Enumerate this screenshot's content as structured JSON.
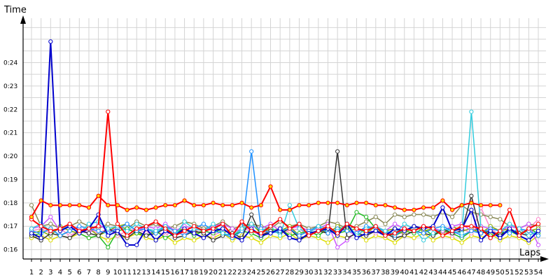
{
  "chart_data": {
    "type": "line",
    "ylabel": "Time",
    "xlabel": "Laps",
    "x": [
      1,
      2,
      3,
      4,
      5,
      6,
      7,
      8,
      9,
      10,
      11,
      12,
      13,
      14,
      15,
      16,
      17,
      18,
      19,
      20,
      21,
      22,
      23,
      24,
      25,
      26,
      27,
      28,
      29,
      30,
      31,
      32,
      33,
      34,
      35,
      36,
      37,
      38,
      39,
      40,
      41,
      42,
      43,
      44,
      45,
      46,
      47,
      48,
      49,
      50,
      51,
      52,
      53,
      54
    ],
    "xlim": [
      1,
      54
    ],
    "y_ticks": [
      "0:16",
      "0:17",
      "0:18",
      "0:19",
      "0:20",
      "0:21",
      "0:22",
      "0:23",
      "0:24"
    ],
    "y_tick_values": [
      16,
      17,
      18,
      19,
      20,
      21,
      22,
      23,
      24
    ],
    "ylim": [
      15.6,
      25.9
    ],
    "grid": true,
    "series": [
      {
        "color": "#ff0000",
        "marker_fill": "#ffd700",
        "width": 2,
        "values": [
          17.4,
          18.1,
          17.9,
          17.9,
          17.9,
          17.9,
          17.8,
          18.3,
          17.9,
          17.9,
          17.7,
          17.8,
          17.7,
          17.8,
          17.9,
          17.9,
          18.1,
          17.9,
          17.9,
          18.0,
          17.9,
          17.9,
          18.0,
          17.8,
          17.9,
          18.7,
          17.7,
          17.7,
          17.9,
          17.9,
          18.0,
          18.0,
          18.0,
          17.9,
          18.0,
          18.0,
          17.9,
          17.9,
          17.8,
          17.7,
          17.7,
          17.8,
          17.8,
          18.1,
          17.7,
          17.9,
          18.0,
          17.9,
          17.9,
          17.9,
          null,
          null,
          null,
          null
        ]
      },
      {
        "color": "#ff0000",
        "marker_fill": "#ffffff",
        "width": 2,
        "values": [
          17.3,
          17.0,
          16.8,
          16.9,
          17.1,
          16.8,
          16.9,
          17.0,
          21.9,
          17.1,
          16.6,
          16.9,
          17.0,
          17.2,
          16.9,
          16.6,
          16.8,
          17.0,
          16.8,
          16.9,
          17.1,
          16.6,
          17.2,
          16.8,
          16.7,
          17.0,
          17.3,
          16.9,
          17.1,
          16.6,
          16.8,
          17.0,
          16.7,
          17.1,
          16.9,
          16.8,
          17.0,
          16.6,
          16.7,
          16.9,
          16.8,
          17.0,
          16.9,
          16.6,
          16.8,
          17.0,
          17.0,
          16.9,
          16.5,
          16.8,
          17.7,
          16.6,
          16.9,
          17.1
        ]
      },
      {
        "color": "#0000cc",
        "marker_fill": "#ffffff",
        "width": 2,
        "values": [
          16.7,
          16.5,
          24.9,
          16.8,
          17.0,
          16.7,
          16.9,
          17.5,
          16.6,
          16.8,
          16.2,
          16.2,
          16.9,
          16.4,
          16.8,
          16.6,
          16.9,
          16.7,
          16.5,
          16.8,
          16.9,
          16.6,
          16.4,
          16.9,
          16.6,
          16.7,
          16.9,
          16.5,
          16.4,
          16.7,
          16.8,
          16.9,
          16.6,
          17.1,
          16.5,
          16.7,
          16.8,
          16.6,
          16.9,
          16.8,
          17.0,
          16.9,
          17.0,
          17.8,
          16.8,
          16.9,
          17.7,
          16.4,
          16.8,
          16.5,
          16.9,
          16.6,
          16.4,
          16.8
        ]
      },
      {
        "color": "#33ccdd",
        "marker_fill": "#ffffff",
        "width": 1.5,
        "values": [
          16.9,
          17.1,
          16.8,
          16.9,
          17.0,
          16.7,
          17.1,
          17.2,
          16.9,
          17.0,
          16.8,
          17.1,
          16.9,
          16.8,
          17.0,
          16.6,
          17.2,
          16.9,
          16.8,
          17.1,
          16.7,
          16.6,
          16.9,
          17.1,
          16.8,
          17.0,
          16.6,
          17.9,
          16.9,
          16.7,
          17.0,
          16.9,
          16.8,
          17.1,
          16.6,
          16.9,
          17.0,
          16.8,
          16.7,
          17.1,
          16.9,
          16.4,
          16.7,
          16.9,
          16.8,
          16.7,
          21.9,
          16.9,
          16.5,
          16.8,
          17.1,
          16.9,
          16.6,
          16.8
        ]
      },
      {
        "color": "#1e90ff",
        "marker_fill": "#ffffff",
        "width": 1.5,
        "values": [
          16.8,
          16.7,
          16.9,
          16.6,
          16.8,
          17.0,
          16.9,
          16.8,
          16.7,
          16.9,
          17.1,
          16.8,
          16.9,
          16.7,
          17.0,
          16.8,
          16.6,
          16.9,
          17.1,
          16.8,
          16.7,
          16.5,
          16.8,
          20.2,
          16.9,
          16.7,
          16.8,
          16.9,
          16.6,
          16.8,
          17.0,
          16.7,
          16.9,
          16.8,
          16.7,
          17.0,
          16.9,
          16.8,
          16.6,
          16.9,
          16.8,
          16.7,
          16.9,
          17.0,
          16.8,
          16.6,
          16.8,
          16.7,
          16.9,
          16.8,
          16.7,
          16.9,
          16.8,
          16.6
        ]
      },
      {
        "color": "#333333",
        "marker_fill": "#ffffff",
        "width": 1.5,
        "values": [
          16.6,
          16.4,
          16.7,
          16.6,
          16.5,
          16.8,
          16.7,
          16.6,
          16.9,
          16.7,
          16.5,
          16.8,
          16.6,
          16.7,
          16.9,
          16.5,
          16.6,
          16.8,
          16.7,
          16.4,
          16.6,
          16.7,
          16.5,
          17.5,
          16.6,
          16.8,
          16.7,
          16.9,
          16.5,
          16.6,
          16.8,
          16.7,
          20.2,
          16.5,
          16.7,
          16.6,
          16.8,
          16.7,
          16.5,
          16.6,
          16.8,
          16.7,
          16.6,
          16.9,
          16.7,
          16.8,
          18.3,
          16.7,
          16.8,
          16.6,
          16.9,
          16.7,
          16.6,
          16.8
        ]
      },
      {
        "color": "#cc55ff",
        "marker_fill": "#ffffff",
        "width": 1.5,
        "values": [
          16.9,
          17.0,
          17.4,
          16.8,
          17.0,
          16.9,
          16.7,
          17.1,
          16.8,
          16.9,
          17.1,
          16.8,
          17.0,
          16.9,
          17.1,
          16.8,
          17.0,
          16.9,
          16.8,
          17.0,
          17.1,
          16.9,
          16.8,
          17.0,
          16.9,
          17.1,
          16.8,
          16.9,
          17.0,
          16.8,
          16.9,
          17.1,
          16.1,
          16.4,
          16.8,
          16.9,
          17.0,
          16.8,
          17.1,
          16.9,
          16.8,
          17.0,
          16.9,
          16.8,
          17.0,
          17.1,
          16.8,
          17.0,
          16.9,
          16.8,
          17.0,
          16.9,
          17.1,
          16.2
        ]
      },
      {
        "color": "#88aa00",
        "marker_fill": "#ffffff",
        "width": 1.5,
        "values": [
          16.7,
          16.8,
          16.6,
          17.0,
          16.8,
          16.7,
          16.9,
          16.6,
          16.8,
          17.0,
          17.1,
          16.8,
          16.9,
          16.7,
          17.0,
          16.8,
          16.9,
          16.7,
          16.8,
          17.0,
          16.7,
          16.9,
          16.8,
          17.1,
          16.7,
          16.9,
          16.8,
          17.0,
          16.6,
          16.8,
          16.9,
          16.7,
          17.0,
          16.8,
          16.9,
          16.7,
          17.0,
          16.8,
          16.9,
          16.7,
          17.0,
          16.8,
          16.9,
          16.7,
          17.0,
          16.8,
          16.9,
          16.7,
          17.0,
          16.8,
          16.9,
          16.7,
          16.8,
          16.9
        ]
      },
      {
        "color": "#22bb22",
        "marker_fill": "#ffffff",
        "width": 1.5,
        "values": [
          16.6,
          16.7,
          16.9,
          16.6,
          16.8,
          16.7,
          16.5,
          16.6,
          16.1,
          16.8,
          16.9,
          16.7,
          16.6,
          16.8,
          16.5,
          16.7,
          16.9,
          16.6,
          16.8,
          16.7,
          16.9,
          16.6,
          16.8,
          16.7,
          16.5,
          16.8,
          16.9,
          16.6,
          16.7,
          16.8,
          16.6,
          16.9,
          16.7,
          16.8,
          17.6,
          17.4,
          16.9,
          16.7,
          16.6,
          16.8,
          16.7,
          16.9,
          16.6,
          16.8,
          16.7,
          16.5,
          16.8,
          16.9,
          16.6,
          16.7,
          16.8,
          16.6,
          16.9,
          16.7
        ]
      },
      {
        "color": "#888855",
        "marker_fill": "#ffffff",
        "width": 1.5,
        "values": [
          17.9,
          17.0,
          17.1,
          16.9,
          17.0,
          17.2,
          17.0,
          16.9,
          17.1,
          17.0,
          16.9,
          17.2,
          17.0,
          17.1,
          16.9,
          17.0,
          17.2,
          17.1,
          16.9,
          17.0,
          17.2,
          16.9,
          17.0,
          17.1,
          17.0,
          16.9,
          17.2,
          17.0,
          17.1,
          16.9,
          17.0,
          17.2,
          17.1,
          16.9,
          17.0,
          17.2,
          17.4,
          17.1,
          17.5,
          17.4,
          17.5,
          17.5,
          17.4,
          17.6,
          17.4,
          17.9,
          17.6,
          17.5,
          17.4,
          17.3,
          17.0,
          16.9,
          17.1,
          17.0
        ]
      },
      {
        "color": "#ff88cc",
        "marker_fill": "#ffffff",
        "width": 1.5,
        "values": [
          16.8,
          16.9,
          16.7,
          16.9,
          16.6,
          16.8,
          16.9,
          16.7,
          16.9,
          16.6,
          16.8,
          16.9,
          16.7,
          16.8,
          16.6,
          16.9,
          16.7,
          16.8,
          16.9,
          16.6,
          16.8,
          16.7,
          16.9,
          16.8,
          16.6,
          16.9,
          16.7,
          16.8,
          16.9,
          16.6,
          16.8,
          16.7,
          16.9,
          16.8,
          16.6,
          16.9,
          16.7,
          16.8,
          16.9,
          16.6,
          16.8,
          16.7,
          16.9,
          16.8,
          16.6,
          16.9,
          16.7,
          17.8,
          16.9,
          16.6,
          16.8,
          16.7,
          16.9,
          17.3
        ]
      },
      {
        "color": "#dddd00",
        "marker_fill": "#ffffff",
        "width": 1.5,
        "values": [
          16.5,
          16.6,
          16.4,
          16.6,
          16.5,
          16.7,
          16.5,
          16.6,
          16.4,
          16.6,
          16.5,
          16.7,
          16.5,
          16.4,
          16.6,
          16.3,
          16.5,
          16.4,
          16.6,
          16.5,
          16.7,
          16.4,
          16.6,
          16.5,
          16.3,
          16.6,
          16.5,
          16.7,
          16.4,
          16.6,
          16.5,
          16.3,
          16.6,
          16.5,
          16.7,
          16.4,
          16.6,
          16.5,
          16.3,
          16.6,
          16.5,
          16.7,
          16.4,
          16.6,
          16.5,
          16.3,
          16.6,
          16.5,
          16.7,
          16.4,
          16.6,
          16.5,
          16.3,
          16.6
        ]
      }
    ]
  }
}
